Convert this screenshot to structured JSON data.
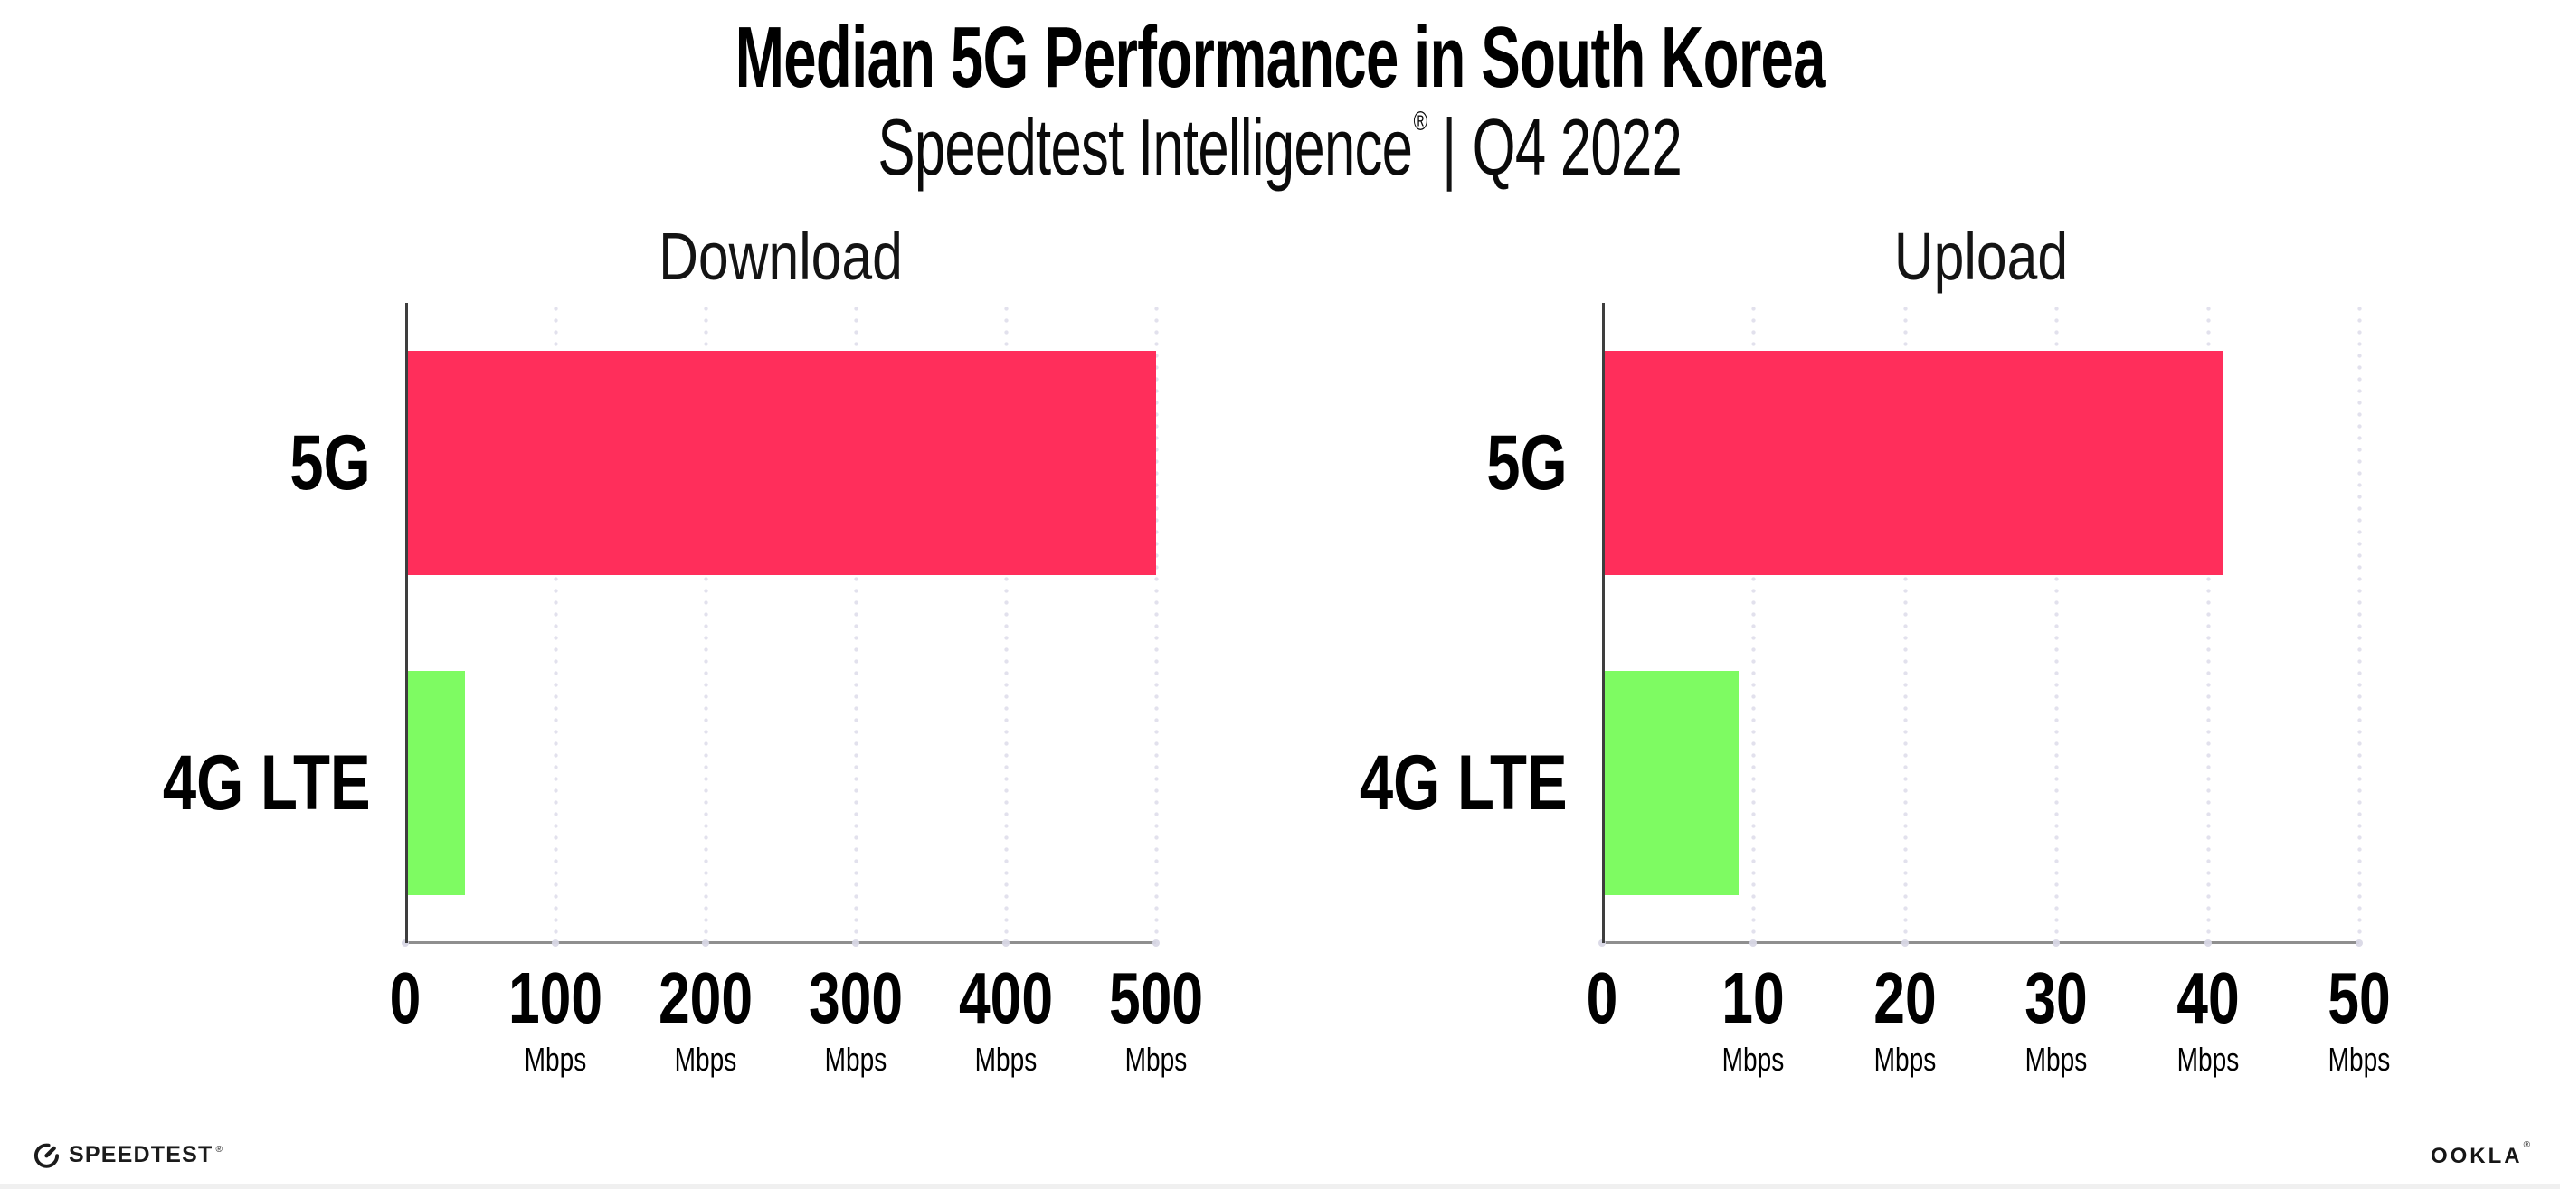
{
  "header": {
    "title": "Median 5G Performance in South Korea",
    "subtitle_brand": "Speedtest Intelligence",
    "subtitle_reg": "®",
    "subtitle_sep": "|",
    "subtitle_period": "Q4 2022"
  },
  "chart_data": [
    {
      "type": "bar",
      "orientation": "horizontal",
      "title": "Download",
      "categories": [
        "5G",
        "4G LTE"
      ],
      "values": [
        500,
        40
      ],
      "value_unit": "Mbps",
      "xlim": [
        0,
        500
      ],
      "xticks": [
        0,
        100,
        200,
        300,
        400,
        500
      ],
      "xtick_unit": "Mbps",
      "bar_colors": [
        "#FF2E5B",
        "#7EFB62"
      ],
      "grid": "dotted-vertical",
      "legend": "none"
    },
    {
      "type": "bar",
      "orientation": "horizontal",
      "title": "Upload",
      "categories": [
        "5G",
        "4G LTE"
      ],
      "values": [
        41,
        9
      ],
      "value_unit": "Mbps",
      "xlim": [
        0,
        50
      ],
      "xticks": [
        0,
        10,
        20,
        30,
        40,
        50
      ],
      "xtick_unit": "Mbps",
      "bar_colors": [
        "#FF2E5B",
        "#7EFB62"
      ],
      "grid": "dotted-vertical",
      "legend": "none"
    }
  ],
  "footer": {
    "speedtest_label": "SPEEDTEST",
    "speedtest_reg": "®",
    "ookla_label": "OOKLA",
    "ookla_reg": "®"
  },
  "colors": {
    "bar_5g": "#FF2E5B",
    "bar_4g_lte": "#7EFB62",
    "gridline_dots": "#E2E1ED",
    "y_spine": "#3E3E3E",
    "x_axis_line": "#8F8F8F",
    "text": "#000000"
  }
}
